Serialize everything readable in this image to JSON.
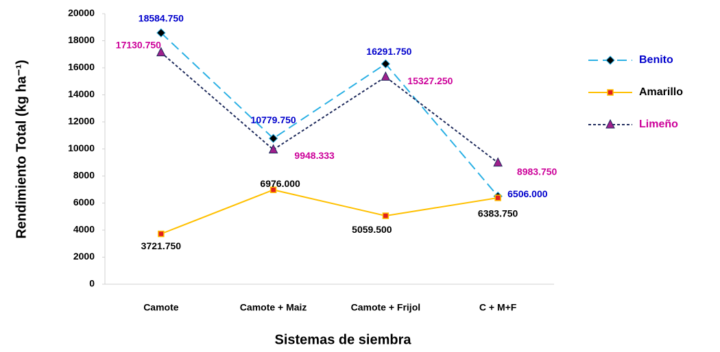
{
  "chart_data": {
    "type": "line",
    "y_label": "Rendimiento Total (kg ha⁻¹)",
    "x_label": "Sistemas de siembra",
    "categories": [
      "Camote",
      "Camote + Maiz",
      "Camote + Frijol",
      "C + M+F"
    ],
    "ylim": [
      0,
      20000
    ],
    "yticks": [
      0,
      2000,
      4000,
      6000,
      8000,
      10000,
      12000,
      14000,
      16000,
      18000,
      20000
    ],
    "grid": false,
    "legend": "right",
    "series": [
      {
        "name": "Benito",
        "color": "#2ab0e4",
        "marker": "diamond",
        "marker_color": "#000000",
        "label_color": "#0000cc",
        "dash": "long",
        "values": [
          18584.75,
          10779.75,
          16291.75,
          6506
        ],
        "value_labels": [
          "18584.750",
          "10779.750",
          "16291.750",
          "6506.000"
        ]
      },
      {
        "name": "Amarillo",
        "color": "#ffc000",
        "marker": "square",
        "marker_color": "#e02020",
        "label_color": "#000000",
        "dash": "solid",
        "values": [
          3721.75,
          6976,
          5059.5,
          6383.75
        ],
        "value_labels": [
          "3721.750",
          "6976.000",
          "5059.500",
          "6383.750"
        ]
      },
      {
        "name": "Limeño",
        "color": "#1f2b5c",
        "marker": "triangle",
        "marker_color": "#a0208c",
        "label_color": "#cc0099",
        "dash": "short",
        "values": [
          17130.75,
          9948.333,
          15327.25,
          8983.75
        ],
        "value_labels": [
          "17130.750",
          "9948.333",
          "15327.250",
          "8983.750"
        ]
      }
    ]
  }
}
